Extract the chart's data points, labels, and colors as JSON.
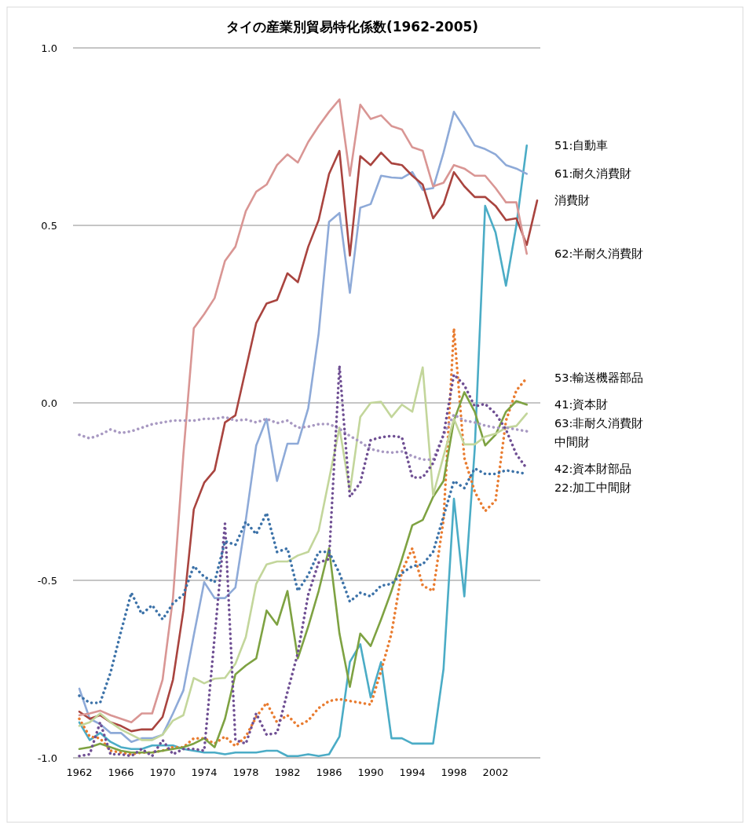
{
  "chart_data": {
    "type": "line",
    "title": "タイの産業別貿易特化係数(1962-2005)",
    "categories": [
      "1962",
      null,
      null,
      null,
      "1966",
      null,
      null,
      null,
      "1970",
      null,
      null,
      null,
      "1974",
      null,
      null,
      null,
      "1978",
      null,
      null,
      null,
      "1982",
      null,
      null,
      null,
      "1986",
      null,
      null,
      null,
      "1990",
      null,
      null,
      null,
      "1994",
      null,
      null,
      null,
      "1998",
      null,
      null,
      null,
      "2002",
      null,
      null,
      null,
      null
    ],
    "ylim": [
      -1,
      1
    ],
    "yticks": [
      {
        "value": 1,
        "label": "1.0"
      },
      0.5,
      {
        "value": 0,
        "label": "0.0"
      },
      -0.5,
      {
        "value": -1,
        "label": "-1.0"
      }
    ],
    "grid": "y",
    "series": [
      {
        "name": "51:自動車",
        "color": "#4bacc6",
        "line_style": "solid",
        "values": [
          -0.9,
          -0.95,
          -0.93,
          -0.955,
          -0.97,
          -0.975,
          -0.975,
          -0.965,
          -0.965,
          -0.965,
          -0.975,
          -0.98,
          -0.985,
          -0.985,
          -0.99,
          -0.985,
          -0.985,
          -0.985,
          -0.98,
          -0.98,
          -0.995,
          -0.995,
          -0.99,
          -0.995,
          -0.99,
          -0.94,
          -0.73,
          -0.68,
          -0.83,
          -0.73,
          -0.945,
          -0.945,
          -0.96,
          -0.96,
          -0.96,
          -0.75,
          -0.27,
          -0.545,
          -0.13,
          0.555,
          0.48,
          0.33,
          0.5,
          0.725,
          null
        ]
      },
      {
        "name": "61:耐久消費財",
        "color": "#8eaad8",
        "line_style": "solid",
        "values": [
          -0.805,
          -0.89,
          -0.905,
          -0.93,
          -0.93,
          -0.955,
          -0.945,
          -0.945,
          -0.935,
          -0.875,
          -0.81,
          -0.655,
          -0.505,
          -0.55,
          -0.55,
          -0.52,
          -0.33,
          -0.12,
          -0.045,
          -0.22,
          -0.115,
          -0.115,
          -0.015,
          0.195,
          0.51,
          0.535,
          0.31,
          0.55,
          0.56,
          0.64,
          0.635,
          0.633,
          0.65,
          0.6,
          0.605,
          0.705,
          0.82,
          0.775,
          0.725,
          0.715,
          0.7,
          0.67,
          0.66,
          0.645,
          null
        ]
      },
      {
        "name": "消費財",
        "color": "#a9443f",
        "line_style": "solid",
        "values": [
          -0.87,
          -0.89,
          -0.88,
          -0.9,
          -0.91,
          -0.925,
          -0.92,
          -0.92,
          -0.885,
          -0.78,
          -0.585,
          -0.3,
          -0.225,
          -0.19,
          -0.055,
          -0.035,
          0.095,
          0.225,
          0.28,
          0.29,
          0.365,
          0.34,
          0.44,
          0.515,
          0.645,
          0.71,
          0.415,
          0.695,
          0.67,
          0.705,
          0.675,
          0.67,
          0.64,
          0.615,
          0.52,
          0.56,
          0.65,
          0.61,
          0.58,
          0.58,
          0.555,
          0.515,
          0.52,
          0.445,
          0.57
        ]
      },
      {
        "name": "62:半耐久消費財",
        "color": "#d99694",
        "line_style": "solid",
        "values": [
          -0.88,
          -0.875,
          -0.867,
          -0.88,
          -0.89,
          -0.9,
          -0.875,
          -0.875,
          -0.78,
          -0.55,
          -0.145,
          0.21,
          0.25,
          0.295,
          0.4,
          0.44,
          0.54,
          0.595,
          0.615,
          0.67,
          0.7,
          0.677,
          0.735,
          0.78,
          0.82,
          0.855,
          0.64,
          0.84,
          0.8,
          0.81,
          0.78,
          0.77,
          0.72,
          0.71,
          0.61,
          0.62,
          0.67,
          0.66,
          0.64,
          0.64,
          0.605,
          0.565,
          0.565,
          0.42,
          null
        ]
      },
      {
        "name": "53:輸送機器部品",
        "color": "#e97c30",
        "line_style": "dotted",
        "values": [
          -0.89,
          -0.94,
          -0.945,
          -0.98,
          -0.985,
          -0.99,
          -0.985,
          -0.985,
          -0.98,
          -0.97,
          -0.97,
          -0.945,
          -0.945,
          -0.96,
          -0.94,
          -0.967,
          -0.94,
          -0.885,
          -0.845,
          -0.9,
          -0.88,
          -0.91,
          -0.895,
          -0.86,
          -0.84,
          -0.835,
          -0.84,
          -0.845,
          -0.85,
          -0.755,
          -0.65,
          -0.475,
          -0.41,
          -0.515,
          -0.53,
          -0.33,
          0.21,
          -0.155,
          -0.25,
          -0.305,
          -0.275,
          -0.05,
          0.035,
          0.07,
          null
        ]
      },
      {
        "name": "41:資本財",
        "color": "#7ea242",
        "line_style": "solid",
        "values": [
          -0.975,
          -0.97,
          -0.96,
          -0.97,
          -0.98,
          -0.985,
          -0.985,
          -0.985,
          -0.98,
          -0.975,
          -0.97,
          -0.96,
          -0.945,
          -0.97,
          -0.89,
          -0.765,
          -0.74,
          -0.72,
          -0.585,
          -0.625,
          -0.53,
          -0.72,
          -0.63,
          -0.53,
          -0.41,
          -0.65,
          -0.8,
          -0.65,
          -0.685,
          -0.61,
          -0.53,
          -0.44,
          -0.345,
          -0.33,
          -0.265,
          -0.22,
          -0.05,
          0.03,
          -0.025,
          -0.12,
          -0.09,
          -0.025,
          0.005,
          -0.005,
          null
        ]
      },
      {
        "name": "63:非耐久消費財",
        "color": "#c3d69b",
        "line_style": "solid",
        "values": [
          -0.91,
          -0.9,
          -0.875,
          -0.9,
          -0.92,
          -0.935,
          -0.95,
          -0.95,
          -0.935,
          -0.895,
          -0.88,
          -0.775,
          -0.79,
          -0.777,
          -0.775,
          -0.735,
          -0.66,
          -0.51,
          -0.455,
          -0.447,
          -0.447,
          -0.43,
          -0.42,
          -0.36,
          -0.215,
          -0.07,
          -0.25,
          -0.04,
          0.0,
          0.003,
          -0.04,
          -0.005,
          -0.025,
          0.1,
          -0.26,
          -0.15,
          -0.045,
          -0.117,
          -0.117,
          -0.095,
          -0.087,
          -0.07,
          -0.065,
          -0.03,
          null
        ]
      },
      {
        "name": "中間財",
        "color": "#a899c2",
        "line_style": "dotted",
        "values": [
          -0.09,
          -0.1,
          -0.09,
          -0.075,
          -0.085,
          -0.08,
          -0.07,
          -0.06,
          -0.055,
          -0.05,
          -0.05,
          -0.05,
          -0.045,
          -0.045,
          -0.04,
          -0.05,
          -0.047,
          -0.055,
          -0.045,
          -0.057,
          -0.05,
          -0.07,
          -0.067,
          -0.06,
          -0.06,
          -0.073,
          -0.093,
          -0.11,
          -0.13,
          -0.137,
          -0.14,
          -0.137,
          -0.15,
          -0.16,
          -0.16,
          -0.09,
          -0.033,
          -0.05,
          -0.055,
          -0.064,
          -0.07,
          -0.07,
          -0.075,
          -0.08,
          null
        ]
      },
      {
        "name": "42:資本財部品",
        "color": "#6f4f93",
        "line_style": "dotted",
        "values": [
          -0.995,
          -0.99,
          -0.9,
          -0.99,
          -0.99,
          -0.995,
          -0.975,
          -0.995,
          -0.95,
          -0.99,
          -0.975,
          -0.975,
          -0.98,
          -0.66,
          -0.34,
          -0.95,
          -0.96,
          -0.875,
          -0.935,
          -0.93,
          -0.815,
          -0.705,
          -0.54,
          -0.45,
          -0.44,
          0.105,
          -0.265,
          -0.225,
          -0.105,
          -0.097,
          -0.093,
          -0.097,
          -0.21,
          -0.21,
          -0.17,
          -0.09,
          0.08,
          0.05,
          -0.01,
          -0.003,
          -0.03,
          -0.075,
          -0.145,
          -0.185,
          null
        ]
      },
      {
        "name": "22:加工中間財",
        "color": "#3c72a8",
        "line_style": "dotted",
        "values": [
          -0.825,
          -0.845,
          -0.845,
          -0.76,
          -0.645,
          -0.535,
          -0.595,
          -0.57,
          -0.61,
          -0.565,
          -0.54,
          -0.46,
          -0.49,
          -0.505,
          -0.39,
          -0.4,
          -0.335,
          -0.37,
          -0.31,
          -0.42,
          -0.41,
          -0.53,
          -0.485,
          -0.42,
          -0.42,
          -0.48,
          -0.56,
          -0.535,
          -0.545,
          -0.515,
          -0.51,
          -0.48,
          -0.46,
          -0.455,
          -0.42,
          -0.32,
          -0.22,
          -0.24,
          -0.185,
          -0.2,
          -0.2,
          -0.19,
          -0.195,
          -0.2,
          null
        ]
      }
    ]
  }
}
